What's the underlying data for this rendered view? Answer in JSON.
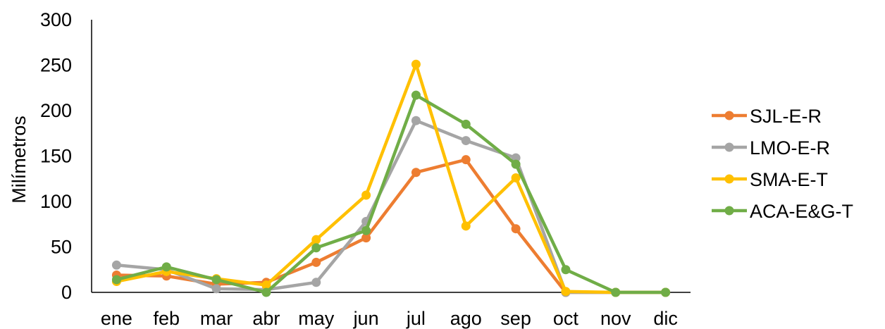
{
  "chart_data": {
    "type": "line",
    "title": "",
    "xlabel": "",
    "ylabel": "Milímetros",
    "ylim": [
      0,
      300
    ],
    "yticks": [
      "0",
      "50",
      "100",
      "150",
      "200",
      "250",
      "300"
    ],
    "grid": false,
    "legend_position": "right",
    "categories": [
      "ene",
      "feb",
      "mar",
      "abr",
      "may",
      "jun",
      "jul",
      "ago",
      "sep",
      "oct",
      "nov",
      "dic"
    ],
    "series": [
      {
        "name": "SJL-E-R",
        "color": "#ED7D31",
        "values": [
          19,
          18,
          9,
          11,
          33,
          60,
          132,
          146,
          70,
          0,
          0,
          0
        ]
      },
      {
        "name": "LMO-E-R",
        "color": "#A5A5A5",
        "values": [
          30,
          25,
          4,
          3,
          11,
          78,
          189,
          167,
          148,
          0,
          0,
          0
        ]
      },
      {
        "name": "SMA-E-T",
        "color": "#FFC000",
        "values": [
          12,
          23,
          15,
          8,
          58,
          107,
          251,
          73,
          126,
          1,
          0,
          0
        ]
      },
      {
        "name": "ACA-E&G-T",
        "color": "#70AD47",
        "values": [
          14,
          28,
          14,
          0,
          49,
          68,
          217,
          185,
          141,
          25,
          0,
          0
        ]
      }
    ]
  }
}
